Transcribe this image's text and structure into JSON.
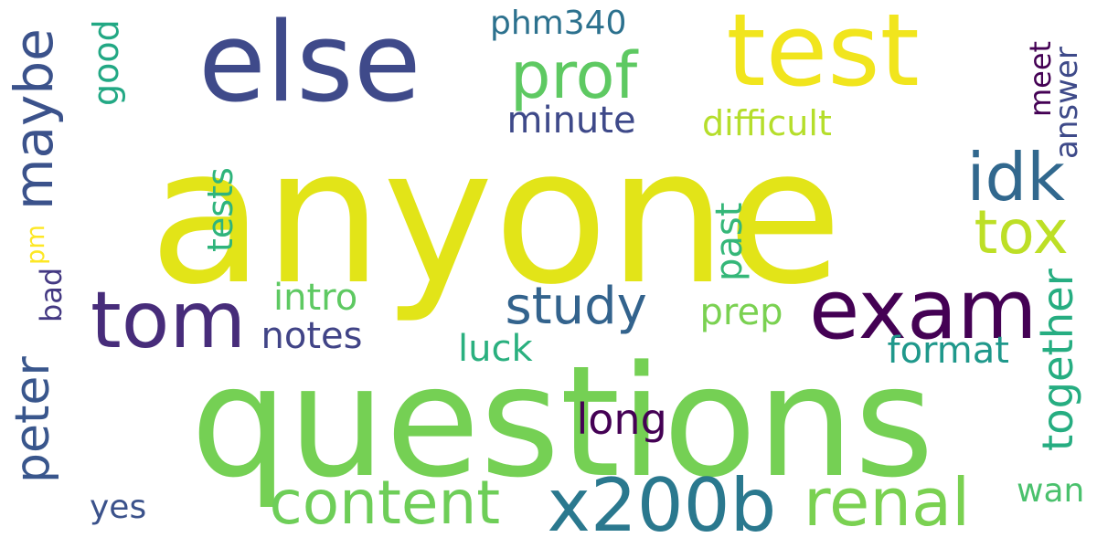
{
  "words": [
    {
      "id": "anyone",
      "text": "anyone",
      "color": "#e2e418",
      "orientation": "horizontal"
    },
    {
      "id": "questions",
      "text": "questions",
      "color": "#75d054",
      "orientation": "horizontal"
    },
    {
      "id": "else",
      "text": "else",
      "color": "#3f4a8a",
      "orientation": "horizontal"
    },
    {
      "id": "test",
      "text": "test",
      "color": "#f1e51d",
      "orientation": "horizontal"
    },
    {
      "id": "exam",
      "text": "exam",
      "color": "#440154",
      "orientation": "horizontal"
    },
    {
      "id": "tom",
      "text": "tom",
      "color": "#472c7a",
      "orientation": "horizontal"
    },
    {
      "id": "prof",
      "text": "prof",
      "color": "#5ec962",
      "orientation": "horizontal"
    },
    {
      "id": "maybe",
      "text": "maybe",
      "color": "#3b528b",
      "orientation": "vertical"
    },
    {
      "id": "peter",
      "text": "peter",
      "color": "#39568c",
      "orientation": "vertical"
    },
    {
      "id": "content",
      "text": "content",
      "color": "#6ece58",
      "orientation": "horizontal"
    },
    {
      "id": "x200b",
      "text": "x200b",
      "color": "#2a788e",
      "orientation": "horizontal"
    },
    {
      "id": "renal",
      "text": "renal",
      "color": "#7ad151",
      "orientation": "horizontal"
    },
    {
      "id": "idk",
      "text": "idk",
      "color": "#31688e",
      "orientation": "horizontal"
    },
    {
      "id": "tox",
      "text": "tox",
      "color": "#bddf26",
      "orientation": "horizontal"
    },
    {
      "id": "study",
      "text": "study",
      "color": "#33638d",
      "orientation": "horizontal"
    },
    {
      "id": "phm340",
      "text": "phm340",
      "color": "#2c718e",
      "orientation": "horizontal"
    },
    {
      "id": "minute",
      "text": "minute",
      "color": "#3e4989",
      "orientation": "horizontal"
    },
    {
      "id": "difficult",
      "text": "difficult",
      "color": "#b5de2b",
      "orientation": "horizontal"
    },
    {
      "id": "good",
      "text": "good",
      "color": "#22a884",
      "orientation": "vertical"
    },
    {
      "id": "meet",
      "text": "meet",
      "color": "#440154",
      "orientation": "vertical"
    },
    {
      "id": "answer",
      "text": "answer",
      "color": "#3e4a89",
      "orientation": "vertical"
    },
    {
      "id": "tests",
      "text": "tests",
      "color": "#2fb47c",
      "orientation": "vertical"
    },
    {
      "id": "past",
      "text": "past",
      "color": "#35b779",
      "orientation": "vertical"
    },
    {
      "id": "pm",
      "text": "pm",
      "color": "#fde725",
      "orientation": "vertical"
    },
    {
      "id": "bad",
      "text": "bad",
      "color": "#443983",
      "orientation": "vertical"
    },
    {
      "id": "intro",
      "text": "intro",
      "color": "#5ec962",
      "orientation": "horizontal"
    },
    {
      "id": "notes",
      "text": "notes",
      "color": "#414487",
      "orientation": "horizontal"
    },
    {
      "id": "prep",
      "text": "prep",
      "color": "#7ad151",
      "orientation": "horizontal"
    },
    {
      "id": "luck",
      "text": "luck",
      "color": "#2ab07f",
      "orientation": "horizontal"
    },
    {
      "id": "format",
      "text": "format",
      "color": "#1f988b",
      "orientation": "horizontal"
    },
    {
      "id": "together",
      "text": "together",
      "color": "#26ad81",
      "orientation": "vertical"
    },
    {
      "id": "long",
      "text": "long",
      "color": "#440154",
      "orientation": "horizontal"
    },
    {
      "id": "wan",
      "text": "wan",
      "color": "#4ac16d",
      "orientation": "horizontal"
    },
    {
      "id": "yes",
      "text": "yes",
      "color": "#3b528b",
      "orientation": "horizontal"
    }
  ]
}
